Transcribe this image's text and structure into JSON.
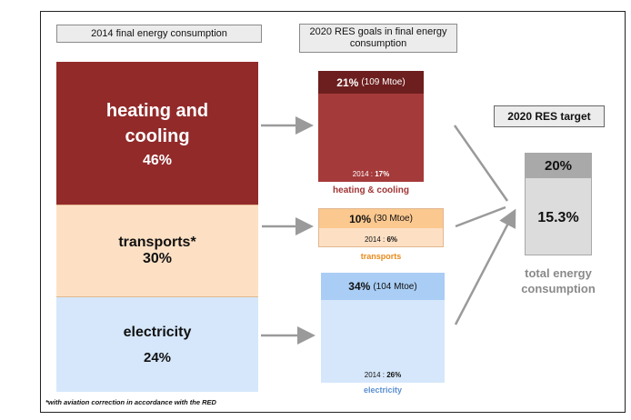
{
  "headers": {
    "left": "2014 final energy consumption",
    "middle": "2020 RES goals in final energy consumption",
    "right": "2020 RES target"
  },
  "consumption_2014": [
    {
      "name": "heating and cooling",
      "share": "46%"
    },
    {
      "name": "transports*",
      "share": "30%"
    },
    {
      "name": "electricity",
      "share": "24%"
    }
  ],
  "goals_2020": [
    {
      "sector": "heating & cooling",
      "goal_pct": "21%",
      "goal_mtoe": "(109 Mtoe)",
      "current": "2014 : ",
      "current_pct": "17%",
      "color": "#a03434"
    },
    {
      "sector": "transports",
      "goal_pct": "10%",
      "goal_mtoe": "(30 Mtoe)",
      "current": "2014 : ",
      "current_pct": "6%",
      "color": "#e88a1a"
    },
    {
      "sector": "electricity",
      "goal_pct": "34%",
      "goal_mtoe": "(104 Mtoe)",
      "current": "2014 : ",
      "current_pct": "26%",
      "color": "#5b8fd0"
    }
  ],
  "target": {
    "goal": "20%",
    "current": "15.3%",
    "label": "total energy consumption"
  },
  "footnote": "*with aviation correction in accordance with the RED"
}
